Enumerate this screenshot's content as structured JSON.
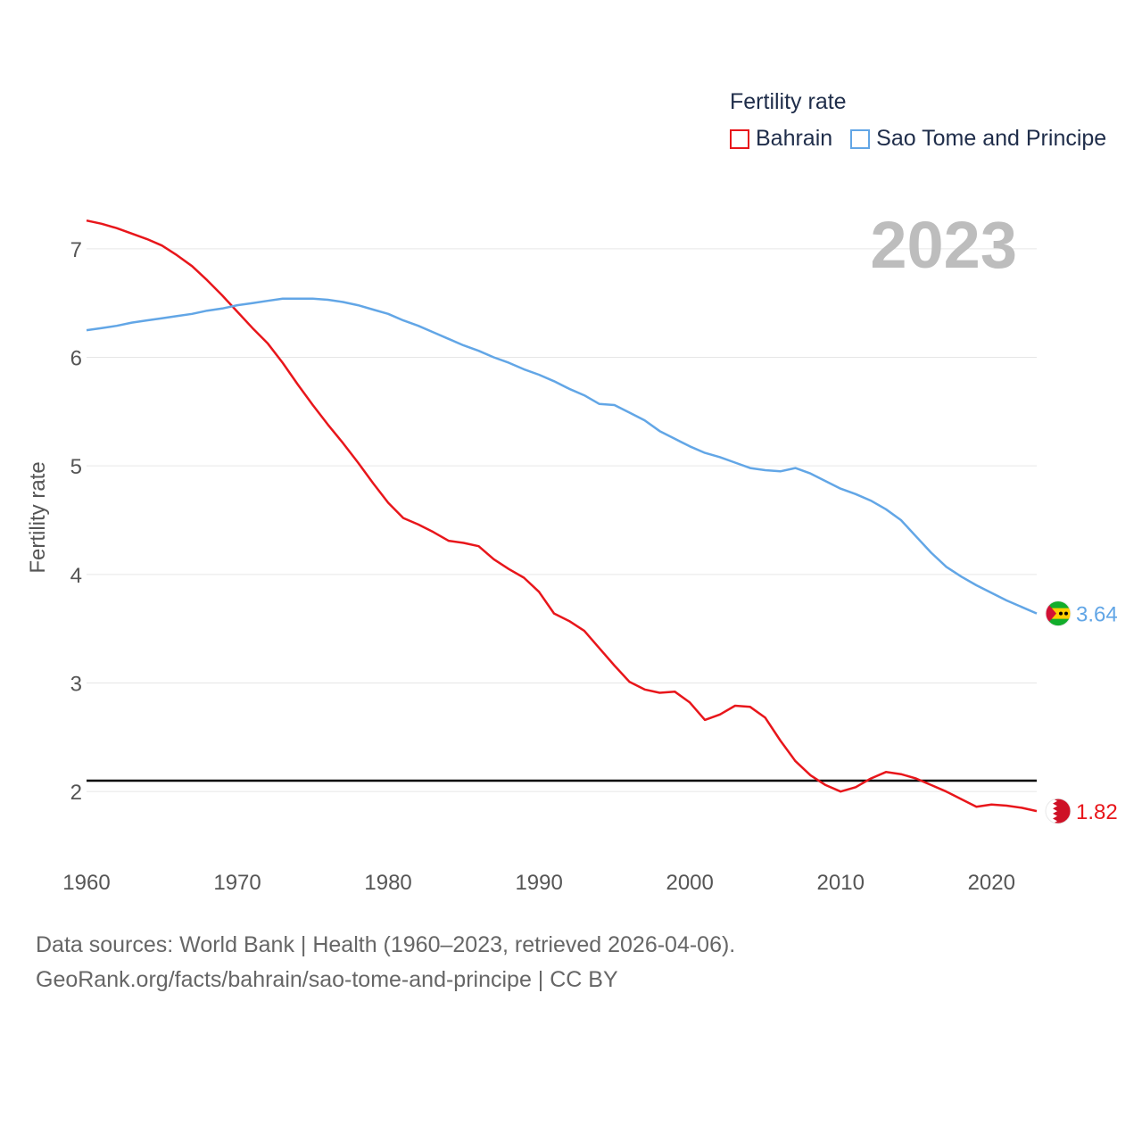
{
  "legend": {
    "title": "Fertility rate",
    "items": [
      {
        "label": "Bahrain",
        "color": "#e8161b"
      },
      {
        "label": "Sao Tome and Principe",
        "color": "#62a6e6"
      }
    ]
  },
  "footer": {
    "line1": "Data sources: World Bank | Health (1960–2023, retrieved 2026-04-06).",
    "line2": "GeoRank.org/facts/bahrain/sao-tome-and-principe | CC BY"
  },
  "chart_data": {
    "type": "line",
    "year_label": "2023",
    "ylabel": "Fertility rate",
    "xlabel": "",
    "xlim": [
      1960,
      2023
    ],
    "ylim": [
      1.5,
      7.5
    ],
    "x_ticks": [
      1960,
      1970,
      1980,
      1990,
      2000,
      2010,
      2020
    ],
    "y_ticks": [
      2,
      3,
      4,
      5,
      6,
      7
    ],
    "reference_line": 2.1,
    "x": [
      1960,
      1961,
      1962,
      1963,
      1964,
      1965,
      1966,
      1967,
      1968,
      1969,
      1970,
      1971,
      1972,
      1973,
      1974,
      1975,
      1976,
      1977,
      1978,
      1979,
      1980,
      1981,
      1982,
      1983,
      1984,
      1985,
      1986,
      1987,
      1988,
      1989,
      1990,
      1991,
      1992,
      1993,
      1994,
      1995,
      1996,
      1997,
      1998,
      1999,
      2000,
      2001,
      2002,
      2003,
      2004,
      2005,
      2006,
      2007,
      2008,
      2009,
      2010,
      2011,
      2012,
      2013,
      2014,
      2015,
      2016,
      2017,
      2018,
      2019,
      2020,
      2021,
      2022,
      2023
    ],
    "series": [
      {
        "name": "Bahrain",
        "color": "#e8161b",
        "end_label": "1.82",
        "values": [
          7.26,
          7.23,
          7.19,
          7.14,
          7.09,
          7.03,
          6.94,
          6.84,
          6.71,
          6.57,
          6.42,
          6.27,
          6.13,
          5.95,
          5.75,
          5.56,
          5.38,
          5.21,
          5.03,
          4.84,
          4.66,
          4.52,
          4.46,
          4.39,
          4.31,
          4.29,
          4.26,
          4.14,
          4.05,
          3.97,
          3.84,
          3.64,
          3.57,
          3.48,
          3.32,
          3.16,
          3.01,
          2.94,
          2.91,
          2.92,
          2.82,
          2.66,
          2.71,
          2.79,
          2.78,
          2.68,
          2.47,
          2.28,
          2.15,
          2.06,
          2.0,
          2.04,
          2.12,
          2.18,
          2.16,
          2.12,
          2.06,
          2.0,
          1.93,
          1.86,
          1.88,
          1.87,
          1.85,
          1.82
        ]
      },
      {
        "name": "Sao Tome and Principe",
        "color": "#62a6e6",
        "end_label": "3.64",
        "values": [
          6.25,
          6.27,
          6.29,
          6.32,
          6.34,
          6.36,
          6.38,
          6.4,
          6.43,
          6.45,
          6.48,
          6.5,
          6.52,
          6.54,
          6.54,
          6.54,
          6.53,
          6.51,
          6.48,
          6.44,
          6.4,
          6.34,
          6.29,
          6.23,
          6.17,
          6.11,
          6.06,
          6.0,
          5.95,
          5.89,
          5.84,
          5.78,
          5.71,
          5.65,
          5.57,
          5.56,
          5.49,
          5.42,
          5.32,
          5.25,
          5.18,
          5.12,
          5.08,
          5.03,
          4.98,
          4.96,
          4.95,
          4.98,
          4.93,
          4.86,
          4.79,
          4.74,
          4.68,
          4.6,
          4.5,
          4.35,
          4.2,
          4.07,
          3.98,
          3.9,
          3.83,
          3.76,
          3.7,
          3.64
        ]
      }
    ]
  }
}
